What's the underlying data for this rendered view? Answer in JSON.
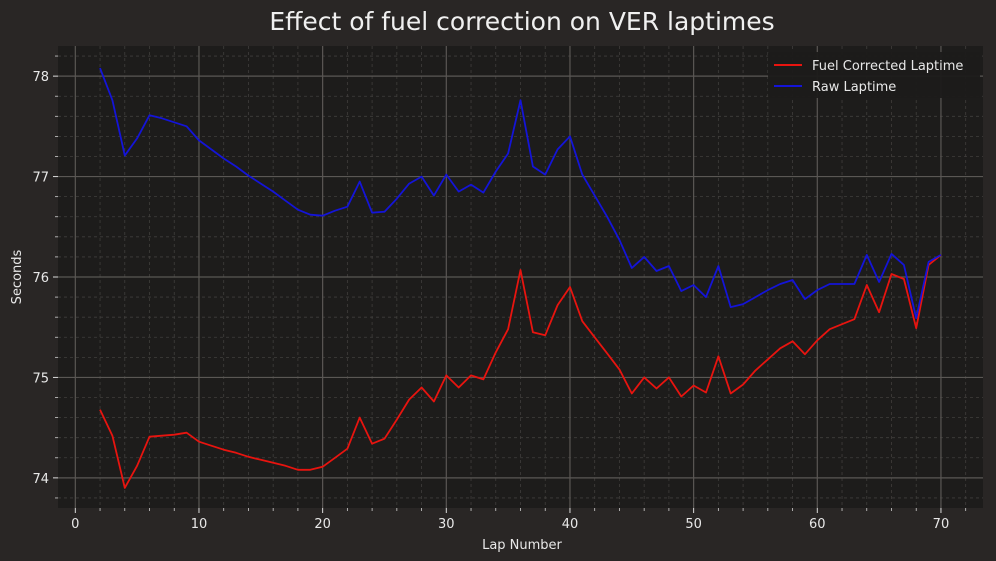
{
  "chart_data": {
    "type": "line",
    "title": "Effect of fuel correction on VER laptimes",
    "xlabel": "Lap Number",
    "ylabel": "Seconds",
    "xlim": [
      -1.4,
      73.4
    ],
    "ylim": [
      73.7,
      78.3
    ],
    "xticks": [
      0,
      10,
      20,
      30,
      40,
      50,
      60,
      70
    ],
    "yticks": [
      74,
      75,
      76,
      77,
      78
    ],
    "grid": true,
    "minor_grid": true,
    "legend_position": "top-right",
    "x": [
      2,
      3,
      4,
      5,
      6,
      7,
      8,
      9,
      10,
      11,
      12,
      13,
      14,
      15,
      16,
      17,
      18,
      19,
      20,
      21,
      22,
      23,
      24,
      25,
      26,
      27,
      28,
      29,
      30,
      31,
      32,
      33,
      34,
      35,
      36,
      37,
      38,
      39,
      40,
      41,
      42,
      43,
      44,
      45,
      46,
      47,
      48,
      49,
      50,
      51,
      52,
      53,
      54,
      55,
      56,
      57,
      58,
      59,
      60,
      61,
      62,
      63,
      64,
      65,
      66,
      67,
      68,
      69,
      70
    ],
    "series": [
      {
        "name": "Fuel Corrected Laptime",
        "color": "#e8140f",
        "values": [
          74.68,
          74.42,
          73.9,
          74.12,
          74.41,
          74.42,
          74.43,
          74.45,
          74.36,
          74.32,
          74.28,
          74.25,
          74.21,
          74.18,
          74.15,
          74.12,
          74.08,
          74.08,
          74.11,
          74.2,
          74.29,
          74.6,
          74.34,
          74.39,
          74.58,
          74.78,
          74.9,
          74.76,
          75.02,
          74.9,
          75.02,
          74.98,
          75.25,
          75.48,
          76.07,
          75.45,
          75.42,
          75.72,
          75.9,
          75.56,
          75.4,
          75.24,
          75.08,
          74.84,
          75.0,
          74.89,
          75.0,
          74.81,
          74.92,
          74.85,
          75.21,
          74.84,
          74.93,
          75.07,
          75.18,
          75.29,
          75.36,
          75.23,
          75.37,
          75.48,
          75.53,
          75.58,
          75.92,
          75.65,
          76.03,
          75.98,
          75.49,
          76.12,
          76.22
        ]
      },
      {
        "name": "Raw Laptime",
        "color": "#1414d8",
        "values": [
          78.08,
          77.76,
          77.21,
          77.38,
          77.61,
          77.58,
          77.54,
          77.5,
          77.36,
          77.27,
          77.18,
          77.1,
          77.01,
          76.93,
          76.85,
          76.76,
          76.67,
          76.62,
          76.61,
          76.66,
          76.7,
          76.95,
          76.64,
          76.65,
          76.78,
          76.93,
          77.0,
          76.81,
          77.02,
          76.85,
          76.92,
          76.84,
          77.05,
          77.23,
          77.76,
          77.1,
          77.02,
          77.27,
          77.4,
          77.02,
          76.81,
          76.6,
          76.37,
          76.09,
          76.2,
          76.06,
          76.11,
          75.86,
          75.92,
          75.8,
          76.11,
          75.7,
          75.73,
          75.8,
          75.87,
          75.93,
          75.97,
          75.78,
          75.87,
          75.93,
          75.93,
          75.93,
          76.22,
          75.95,
          76.23,
          76.12,
          75.59,
          76.15,
          76.22
        ]
      }
    ]
  },
  "colors": {
    "background": "#292625",
    "plot_background": "#1d1c1b",
    "grid_major": "#5a5754",
    "grid_minor": "#403e3c",
    "text": "#e8e8e8",
    "legend_background": "#1c1b1a"
  }
}
